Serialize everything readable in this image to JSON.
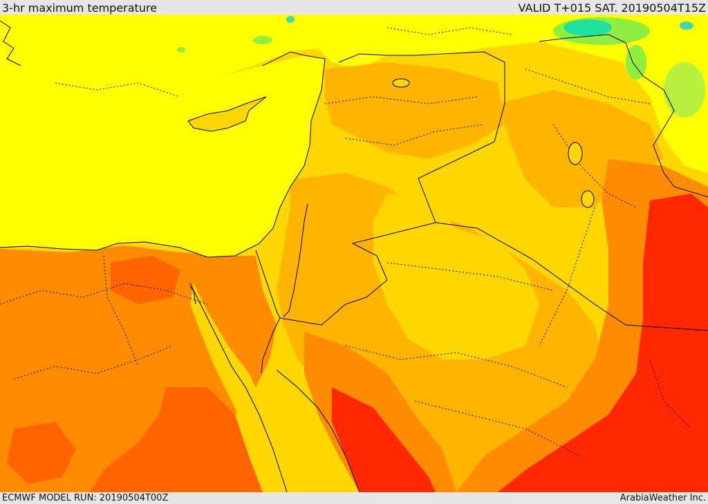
{
  "header": {
    "title": "3-hr maximum temperature",
    "valid": "VALID T+015 SAT. 20190504T15Z"
  },
  "footer": {
    "model_run": "ECMWF MODEL RUN: 20190504T00Z",
    "credit": "ArabiaWeather Inc."
  },
  "map": {
    "colors": {
      "sea": "#ffff00",
      "yellow_orange": "#ffd700",
      "light_orange": "#ffb400",
      "orange": "#ff8c00",
      "dark_orange": "#ff6400",
      "red": "#ff2800",
      "green": "#90ee40",
      "aqua": "#20e0a0",
      "border": "#000000"
    }
  }
}
